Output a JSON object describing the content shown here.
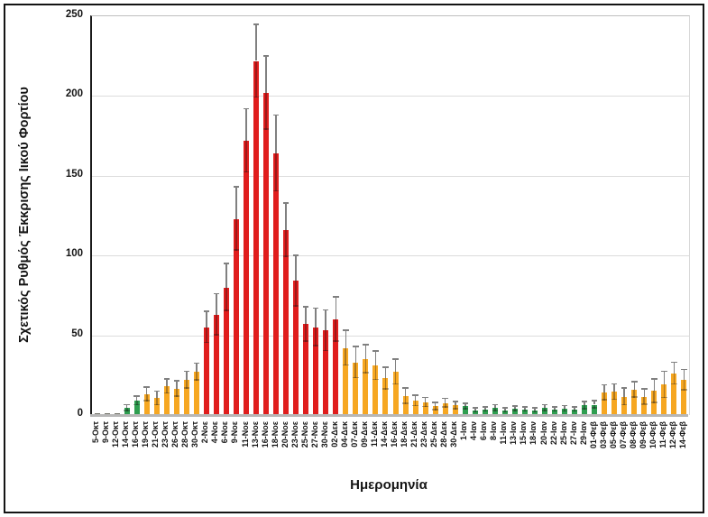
{
  "chart_data": {
    "type": "bar",
    "title": "",
    "xlabel": "Ημερομηνία",
    "ylabel": "Σχετικός Ρυθμός Έκκρισης Ιικού Φορτίου",
    "ylim": [
      0,
      250
    ],
    "yticks": [
      0,
      50,
      100,
      150,
      200,
      250
    ],
    "grid": "horizontal light-gray gridlines at 50-unit intervals",
    "legend": "none",
    "error_bars": "symmetric whiskers with end caps, gray above bar, darker shading inside bar",
    "categories": [
      "5-Οκτ",
      "9-Οκτ",
      "12-Οκτ",
      "14-Οκτ",
      "16-Οκτ",
      "19-Οκτ",
      "21-Οκτ",
      "23-Οκτ",
      "26-Οκτ",
      "28-Οκτ",
      "30-Οκτ",
      "2-Νοε",
      "4-Νοε",
      "6-Νοε",
      "9-Νοε",
      "11-Νοε",
      "13-Νοε",
      "16-Νοε",
      "18-Νοε",
      "20-Νοε",
      "23-Νοε",
      "25-Νοε",
      "27-Νοε",
      "30-Νοε",
      "02-Δεκ",
      "04-Δεκ",
      "07-Δεκ",
      "09-Δεκ",
      "11-Δεκ",
      "14-Δεκ",
      "16-Δεκ",
      "18-Δεκ",
      "21-Δεκ",
      "23-Δεκ",
      "25-Δεκ",
      "28-Δεκ",
      "30-Δεκ",
      "1-Ιαν",
      "4-Ιαν",
      "6-Ιαν",
      "8-Ιαν",
      "11-Ιαν",
      "13-Ιαν",
      "15-Ιαν",
      "18-Ιαν",
      "20-Ιαν",
      "22-Ιαν",
      "25-Ιαν",
      "27-Ιαν",
      "29-Ιαν",
      "01-Φεβ",
      "03-Φεβ",
      "05-Φεβ",
      "07-Φεβ",
      "08-Φεβ",
      "09-Φεβ",
      "10-Φεβ",
      "11-Φεβ",
      "12-Φεβ",
      "14-Φεβ"
    ],
    "values": [
      1.3,
      1.1,
      1.4,
      4.5,
      9,
      13,
      10.5,
      18,
      16.5,
      22,
      27,
      55,
      63,
      80,
      123,
      172,
      222,
      202,
      164,
      116,
      84,
      57,
      55,
      53,
      60,
      42,
      33,
      35,
      31,
      23,
      27,
      12,
      9,
      8,
      5.5,
      7.5,
      6,
      5.5,
      3,
      3.5,
      4.5,
      3,
      4,
      3.5,
      3,
      4.5,
      3.5,
      4,
      3.5,
      6,
      6.5,
      14,
      14.5,
      11.5,
      16,
      11.5,
      15,
      19,
      26,
      22
    ],
    "errors_plus": [
      0,
      0,
      0,
      2,
      3,
      4.5,
      4.5,
      4.5,
      5,
      5.5,
      5.5,
      10,
      13,
      15,
      20,
      20,
      23,
      23,
      24,
      17,
      16,
      11,
      12,
      13,
      14,
      11,
      10,
      9,
      9,
      7,
      8,
      5,
      3.5,
      3,
      2.5,
      3,
      2.5,
      2,
      1.5,
      1.5,
      2,
      1.5,
      1.5,
      1.5,
      1.5,
      2,
      1.5,
      2,
      1.5,
      2.5,
      2.5,
      5,
      5,
      5.5,
      5,
      5,
      7.5,
      8.5,
      7,
      6.5
    ],
    "color_groups": [
      "gray",
      "gray",
      "gray",
      "green",
      "green",
      "orange",
      "orange",
      "orange",
      "orange",
      "orange",
      "orange",
      "red",
      "red",
      "red",
      "red",
      "red",
      "red",
      "red",
      "red",
      "red",
      "red",
      "red",
      "red",
      "red",
      "red",
      "orange",
      "orange",
      "orange",
      "orange",
      "orange",
      "orange",
      "orange",
      "orange",
      "orange",
      "orange",
      "orange",
      "orange",
      "green",
      "green",
      "green",
      "green",
      "green",
      "green",
      "green",
      "green",
      "green",
      "green",
      "green",
      "green",
      "green",
      "green",
      "orange",
      "orange",
      "orange",
      "orange",
      "orange",
      "orange",
      "orange",
      "orange",
      "orange"
    ],
    "bar_colors": {
      "gray": "#72726A",
      "green": "#2E9E50",
      "orange": "#F6A722",
      "red": "#E01D1D"
    },
    "gridline_color": "#DCDCDC",
    "left_axis_color": "#1A1A1A",
    "bottom_axis_color": "#B7B7B7",
    "error_bar_color": "#808080"
  }
}
